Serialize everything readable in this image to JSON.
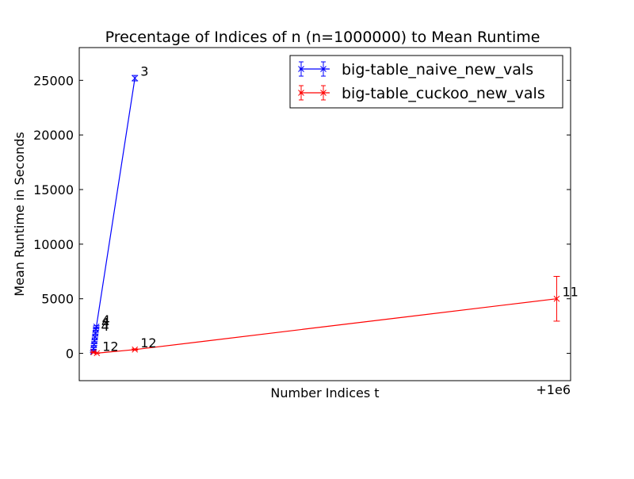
{
  "chart_data": {
    "type": "line",
    "title": "Precentage of Indices of n (n=1000000) to Mean Runtime",
    "xlabel": "Number Indices t",
    "ylabel": "Mean Runtime in Seconds",
    "x_offset_label": "+1e6",
    "ylim": [
      -2500,
      28000
    ],
    "yticks": [
      0,
      5000,
      10000,
      15000,
      20000,
      25000
    ],
    "ytick_labels": [
      "0",
      "5000",
      "10000",
      "15000",
      "20000",
      "25000"
    ],
    "grid": false,
    "legend_position": "top-right",
    "series": [
      {
        "name": "big-table_naive_new_vals",
        "color": "#0000ff",
        "marker": "x",
        "points": [
          {
            "x": 0.0,
            "y": 150,
            "err": 80
          },
          {
            "x": 0.1,
            "y": 450,
            "err": 80
          },
          {
            "x": 0.2,
            "y": 800,
            "err": 80
          },
          {
            "x": 0.3,
            "y": 1150,
            "err": 80
          },
          {
            "x": 0.4,
            "y": 1500,
            "err": 80
          },
          {
            "x": 0.5,
            "y": 1850,
            "err": 80
          },
          {
            "x": 0.6,
            "y": 2200,
            "err": 80
          },
          {
            "x": 0.7,
            "y": 2450,
            "err": 80
          },
          {
            "x": 9.0,
            "y": 25200,
            "err": 250
          }
        ],
        "labels": [
          {
            "text": "4",
            "point": 5
          },
          {
            "text": "4",
            "point": 6
          },
          {
            "text": "4",
            "point": 7
          },
          {
            "text": "3",
            "point": 8
          }
        ]
      },
      {
        "name": "big-table_cuckoo_new_vals",
        "color": "#ff0000",
        "marker": "x",
        "points": [
          {
            "x": 0.1,
            "y": 100,
            "err": 30
          },
          {
            "x": 0.8,
            "y": 20,
            "err": 30
          },
          {
            "x": 9.0,
            "y": 350,
            "err": 60
          },
          {
            "x": 100.0,
            "y": 5000,
            "err": 2050
          }
        ],
        "labels": [
          {
            "text": "12",
            "point": 1
          },
          {
            "text": "12",
            "point": 2
          },
          {
            "text": "11",
            "point": 3
          }
        ]
      }
    ]
  }
}
